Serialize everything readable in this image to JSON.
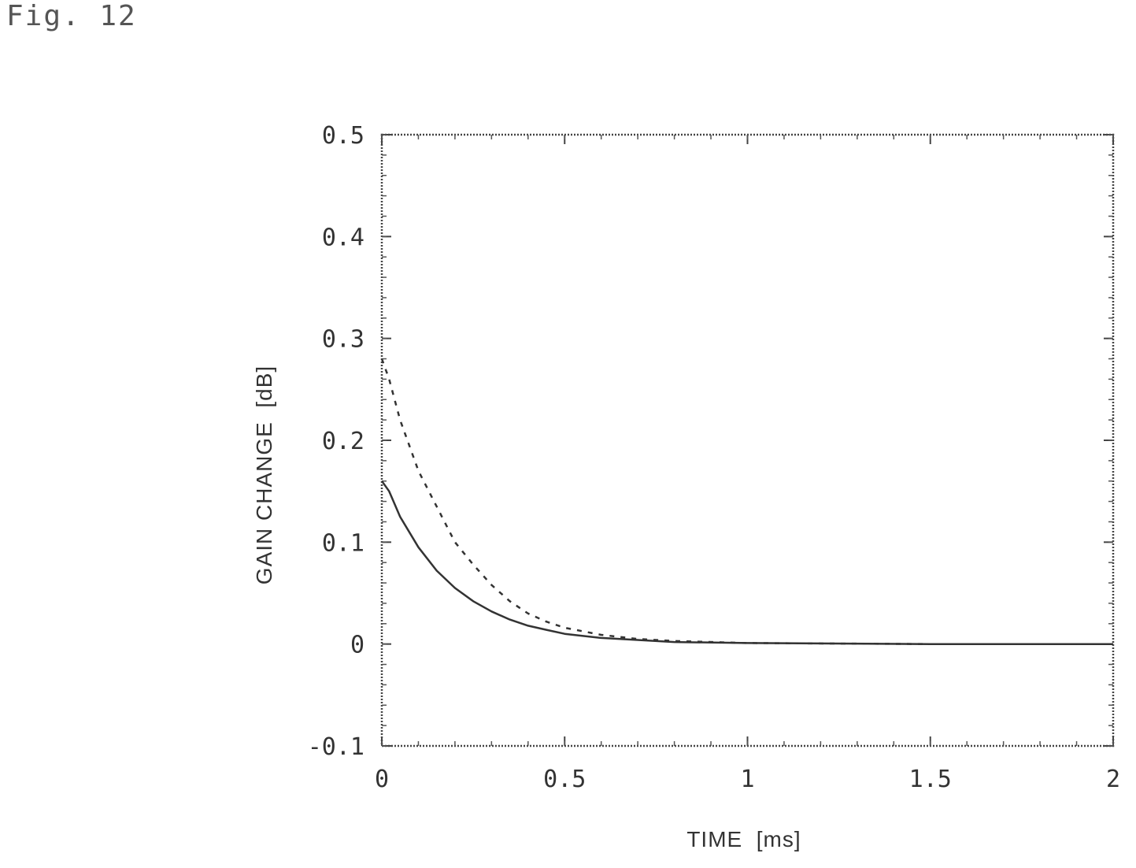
{
  "figure": {
    "label": "Fig. 12"
  },
  "chart_data": {
    "type": "line",
    "xlabel": "TIME  [ms]",
    "ylabel": "GAIN CHANGE  [dB]",
    "xlim": [
      0,
      2
    ],
    "ylim": [
      -0.1,
      0.5
    ],
    "x_ticks": [
      "0",
      "0.5",
      "1",
      "1.5",
      "2"
    ],
    "y_ticks": [
      "-0.1",
      "0",
      "0.1",
      "0.2",
      "0.3",
      "0.4",
      "0.5"
    ],
    "grid": false,
    "legend": "none",
    "series": [
      {
        "style": "solid",
        "color": "#333333",
        "x": [
          0,
          0.02,
          0.05,
          0.1,
          0.15,
          0.2,
          0.25,
          0.3,
          0.35,
          0.4,
          0.45,
          0.5,
          0.6,
          0.7,
          0.8,
          1.0,
          1.5,
          2.0
        ],
        "y": [
          0.16,
          0.15,
          0.125,
          0.095,
          0.072,
          0.055,
          0.042,
          0.032,
          0.024,
          0.018,
          0.014,
          0.01,
          0.006,
          0.004,
          0.002,
          0.001,
          0.0,
          0.0
        ]
      },
      {
        "style": "dashed",
        "color": "#333333",
        "x": [
          0,
          0.02,
          0.05,
          0.1,
          0.15,
          0.2,
          0.25,
          0.3,
          0.35,
          0.4,
          0.45,
          0.5,
          0.6,
          0.7,
          0.8,
          1.0,
          1.5,
          2.0
        ],
        "y": [
          0.28,
          0.26,
          0.22,
          0.17,
          0.135,
          0.1,
          0.078,
          0.058,
          0.042,
          0.03,
          0.022,
          0.016,
          0.009,
          0.005,
          0.003,
          0.001,
          0.0,
          0.0
        ]
      }
    ]
  }
}
